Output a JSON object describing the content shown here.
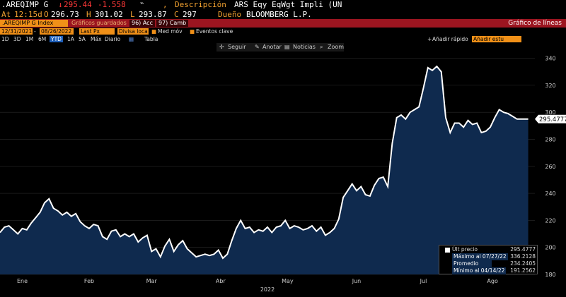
{
  "header": {
    "ticker": ".AREQIMP G",
    "arrow": "↓",
    "last": "295.44",
    "change": "-1.558",
    "desc_label": "Descripción",
    "desc_value": "ARS Eqy EqWgt Impli (UN",
    "at_label": "At",
    "time": "12:15d",
    "open_label": "O",
    "open": "296.73",
    "high_label": "H",
    "high": "301.02",
    "low_label": "L",
    "low": "293.87",
    "close_label": "C",
    "close": "297",
    "owner_label": "Dueño",
    "owner": "BLOOMBERG L.P."
  },
  "redbar": {
    "index_name": ".AREQIMP G Index",
    "action1": "Gráficos guardados",
    "acc": "96) Acc",
    "camb": "97) Camb",
    "title": "Gráfico de líneas"
  },
  "controls": {
    "start_date": "12/31/2021",
    "end_date": "08/26/2022",
    "field": "Last Px",
    "currency": "Divisa loca",
    "avg": "Med móv",
    "events": "Eventos clave"
  },
  "timeframes": [
    "1D",
    "3D",
    "1M",
    "6M",
    "YTD",
    "1A",
    "5A",
    "Máx",
    "Diario"
  ],
  "timeframe_selected": "YTD",
  "table_label": "Tabla",
  "quick_add_label": "Añadir rápido",
  "quick_add_placeholder": "Añadir estu",
  "toolbar": {
    "follow": "Seguir",
    "annotate": "Anotar",
    "news": "Noticias",
    "zoom": "Zoom"
  },
  "legend": {
    "last_label": "Últ precio",
    "last_value": "295.4777",
    "max_label": "Máximo al 07/27/22",
    "max_value": "336.2128",
    "avg_label": "Promedio",
    "avg_value": "234.2405",
    "min_label": "Mínimo al 04/14/22",
    "min_value": "191.2562"
  },
  "chart_data": {
    "type": "area",
    "title": "",
    "xlabel": "2022",
    "ylabel": "",
    "ylim": [
      180,
      345
    ],
    "yticks": [
      180,
      200,
      220,
      240,
      260,
      280,
      300,
      320,
      340
    ],
    "xticks": [
      {
        "label": "Ene",
        "day": 10
      },
      {
        "label": "Feb",
        "day": 40
      },
      {
        "label": "Mar",
        "day": 68
      },
      {
        "label": "Abr",
        "day": 99
      },
      {
        "label": "May",
        "day": 129
      },
      {
        "label": "Jun",
        "day": 160
      },
      {
        "label": "Jul",
        "day": 190
      },
      {
        "label": "Ago",
        "day": 221
      }
    ],
    "last_price_label": "295.4777",
    "colors": {
      "line": "#ffffff",
      "fill": "#0f2a4e"
    },
    "series": [
      {
        "x": [
          0,
          2,
          4,
          6,
          8,
          10,
          12,
          14,
          16,
          18,
          20,
          22,
          24,
          26,
          28,
          30,
          32,
          34,
          36,
          38,
          40,
          42,
          44,
          46,
          48,
          50,
          52,
          54,
          56,
          58,
          60,
          62,
          64,
          66,
          68,
          70,
          72,
          74,
          76,
          78,
          80,
          82,
          84,
          86,
          88,
          90,
          92,
          94,
          96,
          98,
          100,
          102,
          104,
          106,
          108,
          110,
          112,
          114,
          116,
          118,
          120,
          122,
          124,
          126,
          128,
          130,
          132,
          134,
          136,
          138,
          140,
          142,
          144,
          146,
          148,
          150,
          152,
          154,
          156,
          158,
          160,
          162,
          164,
          166,
          168,
          170,
          172,
          174,
          176,
          178,
          180,
          182,
          184,
          186,
          188,
          190,
          192,
          194,
          196,
          198,
          200,
          202,
          204,
          206,
          208,
          210,
          212,
          214,
          216,
          218,
          220,
          222,
          224,
          226,
          228,
          230,
          232,
          235,
          237
        ],
        "values": [
          211,
          215,
          216,
          213,
          210,
          214,
          213,
          218,
          222,
          226,
          233,
          236,
          229,
          227,
          224,
          226,
          223,
          225,
          219,
          216,
          214,
          217,
          216,
          208,
          206,
          212,
          213,
          208,
          210,
          208,
          210,
          204,
          207,
          209,
          197,
          199,
          193,
          201,
          206,
          197,
          202,
          205,
          199,
          196,
          193,
          194,
          195,
          194,
          195,
          198,
          192,
          195,
          205,
          214,
          220,
          214,
          215,
          211,
          213,
          212,
          215,
          211,
          215,
          216,
          220,
          214,
          216,
          215,
          213,
          214,
          216,
          212,
          215,
          209,
          211,
          214,
          221,
          237,
          242,
          247,
          242,
          245,
          239,
          238,
          246,
          251,
          252,
          245,
          277,
          296,
          298,
          295,
          300,
          302,
          304,
          318,
          333,
          331,
          334,
          330,
          296,
          285,
          292,
          292,
          289,
          294,
          291,
          292,
          285,
          286,
          289,
          296,
          302,
          300,
          299,
          297,
          295,
          295,
          295
        ]
      }
    ]
  }
}
